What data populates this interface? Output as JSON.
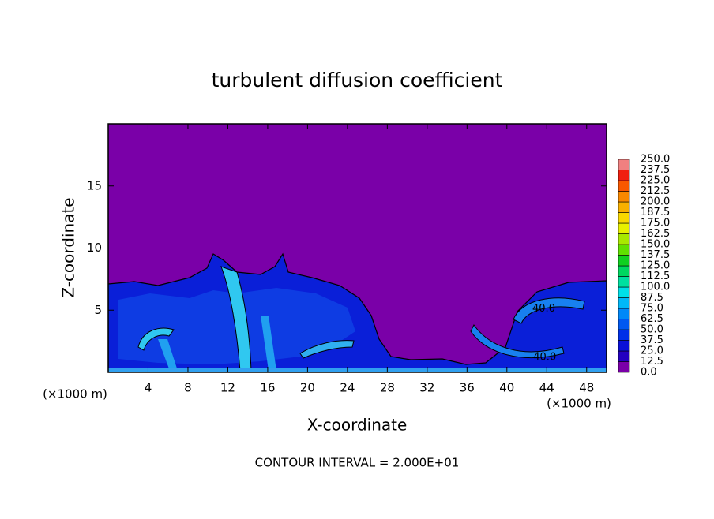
{
  "chart_data": {
    "type": "contour",
    "title": "turbulent diffusion coefficient",
    "x_label": "X-coordinate",
    "y_label": "Z-coordinate",
    "x_unit_label": "(×1000 m)",
    "y_unit_label": "(×1000 m)",
    "xlim": [
      0,
      50
    ],
    "xticks": [
      4,
      8,
      12,
      16,
      20,
      24,
      28,
      32,
      36,
      40,
      44,
      48
    ],
    "ylim": [
      0,
      20
    ],
    "yticks": [
      5,
      10,
      15
    ],
    "clim": [
      0,
      250
    ],
    "levels": [
      {
        "value": 0,
        "label": "0.0"
      },
      12.5,
      {
        "value": 25,
        "label": "25.0"
      },
      37.5,
      {
        "value": 50,
        "label": "50.0"
      },
      62.5,
      {
        "value": 75,
        "label": "75.0"
      },
      87.5,
      {
        "value": 100,
        "label": "100.0"
      },
      112.5,
      {
        "value": 125,
        "label": "125.0"
      },
      137.5,
      {
        "value": 150,
        "label": "150.0"
      },
      162.5,
      {
        "value": 175,
        "label": "175.0"
      },
      187.5,
      {
        "value": 200,
        "label": "200.0"
      },
      212.5,
      {
        "value": 225,
        "label": "225.0"
      },
      237.5,
      {
        "value": 250,
        "label": "250.0"
      }
    ],
    "colors": [
      "#7a00a8",
      "#2400c0",
      "#0a10d8",
      "#0030e8",
      "#0058f0",
      "#0088f8",
      "#00b8f8",
      "#00e0e8",
      "#00e0a0",
      "#00d860",
      "#10d020",
      "#60e000",
      "#a8e800",
      "#e8f000",
      "#f8d800",
      "#f8b000",
      "#f88800",
      "#f85800",
      "#f02010",
      "#f08080"
    ],
    "contour_labels": [
      {
        "value": 40,
        "label": "40.0",
        "x": 43.7,
        "y": 5.1
      },
      {
        "value": 40,
        "label": "40.0",
        "x": 43.8,
        "y": 1.2
      }
    ],
    "footer": "CONTOUR INTERVAL = 2.000E+01"
  }
}
